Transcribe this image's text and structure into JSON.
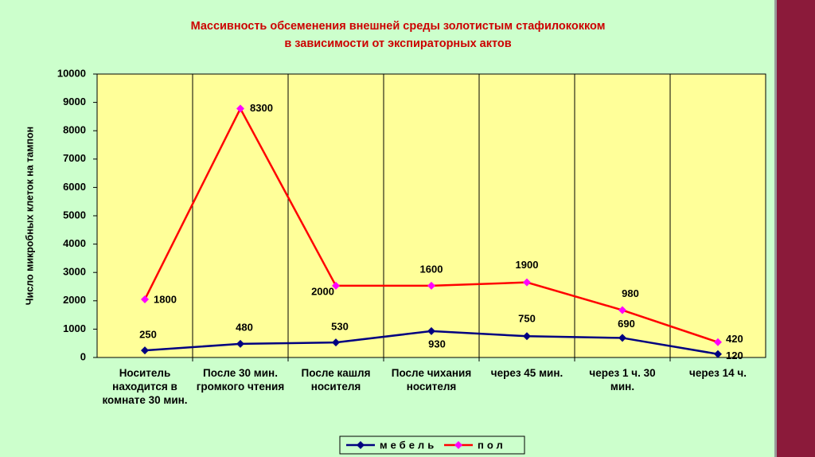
{
  "chart_data": {
    "type": "line",
    "stacked": true,
    "title": "Массивность обсеменения внешней среды золотистым стафилококком",
    "subtitle": "в зависимости от экспираторных актов",
    "y_label": "Число микробных клеток на тампон",
    "categories": [
      "Носитель находится в комнате 30 мин.",
      "После 30 мин. громкого чтения",
      "После кашля носителя",
      "После чихания носителя",
      "через 45 мин.",
      "через 1 ч. 30 мин.",
      "через 14 ч."
    ],
    "series": [
      {
        "name": "мебель",
        "color": "#000080",
        "marker_color": "#000080",
        "values": [
          250,
          480,
          530,
          930,
          750,
          690,
          120
        ]
      },
      {
        "name": "пол",
        "color": "#ff0000",
        "marker_color": "#ff00ff",
        "values": [
          1800,
          8300,
          2000,
          1600,
          1900,
          980,
          420
        ]
      }
    ],
    "ylim": [
      0,
      10000
    ],
    "yticks": [
      0,
      1000,
      2000,
      3000,
      4000,
      5000,
      6000,
      7000,
      8000,
      9000,
      10000
    ],
    "legend": "bottom"
  }
}
